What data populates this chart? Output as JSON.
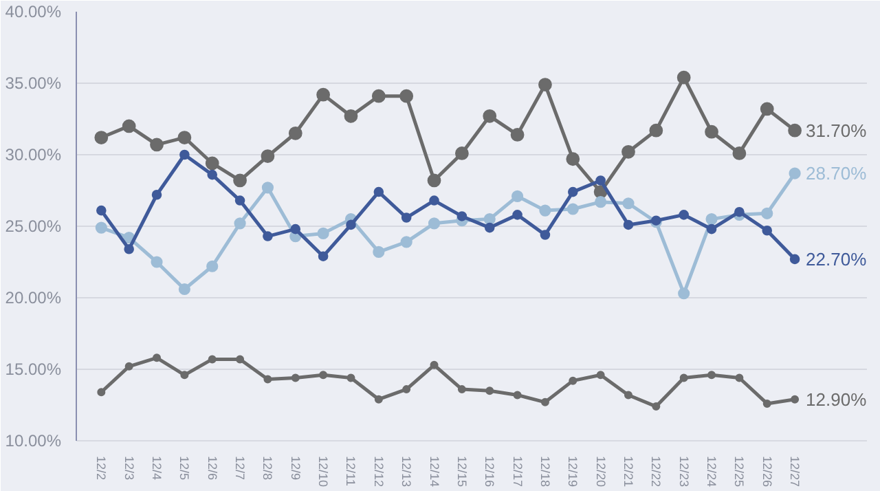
{
  "chart_data": {
    "type": "line",
    "categories": [
      "12/2",
      "12/3",
      "12/4",
      "12/5",
      "12/6",
      "12/7",
      "12/8",
      "12/9",
      "12/10",
      "12/11",
      "12/12",
      "12/13",
      "12/14",
      "12/15",
      "12/16",
      "12/17",
      "12/18",
      "12/19",
      "12/20",
      "12/21",
      "12/22",
      "12/23",
      "12/24",
      "12/25",
      "12/26",
      "12/27"
    ],
    "series": [
      {
        "color": "#6b6b6b",
        "values": [
          31.2,
          32.0,
          30.7,
          31.2,
          29.4,
          28.2,
          29.9,
          31.5,
          34.2,
          32.7,
          34.1,
          34.1,
          28.2,
          30.1,
          32.7,
          31.4,
          34.9,
          29.7,
          27.4,
          30.2,
          31.7,
          35.4,
          31.6,
          30.1,
          33.2,
          31.7
        ],
        "value_labels": [
          null,
          null,
          null,
          null,
          null,
          null,
          null,
          null,
          null,
          null,
          null,
          null,
          null,
          null,
          null,
          null,
          null,
          null,
          null,
          null,
          null,
          null,
          null,
          null,
          null,
          "31.70%"
        ]
      },
      {
        "color": "#9dbcd6",
        "values": [
          24.9,
          24.2,
          22.5,
          20.6,
          22.2,
          25.2,
          27.7,
          24.3,
          24.5,
          25.5,
          23.2,
          23.9,
          25.2,
          25.4,
          25.5,
          27.1,
          26.1,
          26.2,
          26.7,
          26.6,
          25.3,
          20.3,
          25.5,
          25.8,
          25.9,
          28.7
        ],
        "value_labels": [
          null,
          null,
          null,
          null,
          null,
          null,
          null,
          null,
          null,
          null,
          null,
          null,
          null,
          null,
          null,
          null,
          null,
          null,
          null,
          null,
          null,
          null,
          null,
          null,
          null,
          "28.70%"
        ]
      },
      {
        "color": "#3f5a9a",
        "values": [
          26.1,
          23.4,
          27.2,
          30.0,
          28.6,
          26.8,
          24.3,
          24.8,
          22.9,
          25.1,
          27.4,
          25.6,
          26.8,
          25.7,
          24.9,
          25.8,
          24.4,
          27.4,
          28.2,
          25.1,
          25.4,
          25.8,
          24.8,
          26.0,
          24.7,
          22.7
        ],
        "value_labels": [
          null,
          null,
          null,
          null,
          null,
          null,
          null,
          null,
          null,
          null,
          null,
          null,
          null,
          null,
          null,
          null,
          null,
          null,
          null,
          null,
          null,
          null,
          null,
          null,
          null,
          "22.70%"
        ]
      },
      {
        "color": "#6b6b6b",
        "values": [
          13.4,
          15.2,
          15.8,
          14.6,
          15.7,
          15.7,
          14.3,
          14.4,
          14.6,
          14.4,
          12.9,
          13.6,
          15.3,
          13.6,
          13.5,
          13.2,
          12.7,
          14.2,
          14.6,
          13.2,
          12.4,
          14.4,
          14.6,
          14.4,
          12.6,
          12.9
        ],
        "value_labels": [
          null,
          null,
          null,
          null,
          null,
          null,
          null,
          null,
          null,
          null,
          null,
          null,
          null,
          null,
          null,
          null,
          null,
          null,
          null,
          null,
          null,
          null,
          null,
          null,
          null,
          "12.90%"
        ]
      }
    ],
    "ylim": [
      10,
      40
    ],
    "yticks": [
      {
        "value": 10,
        "label": "10.00%"
      },
      {
        "value": 15,
        "label": "15.00%"
      },
      {
        "value": 20,
        "label": "20.00%"
      },
      {
        "value": 25,
        "label": "25.00%"
      },
      {
        "value": 30,
        "label": "30.00%"
      },
      {
        "value": 35,
        "label": "35.00%"
      },
      {
        "value": 40,
        "label": "40.00%"
      }
    ],
    "grid": "y",
    "marker": "circle",
    "line_style": "solid"
  }
}
